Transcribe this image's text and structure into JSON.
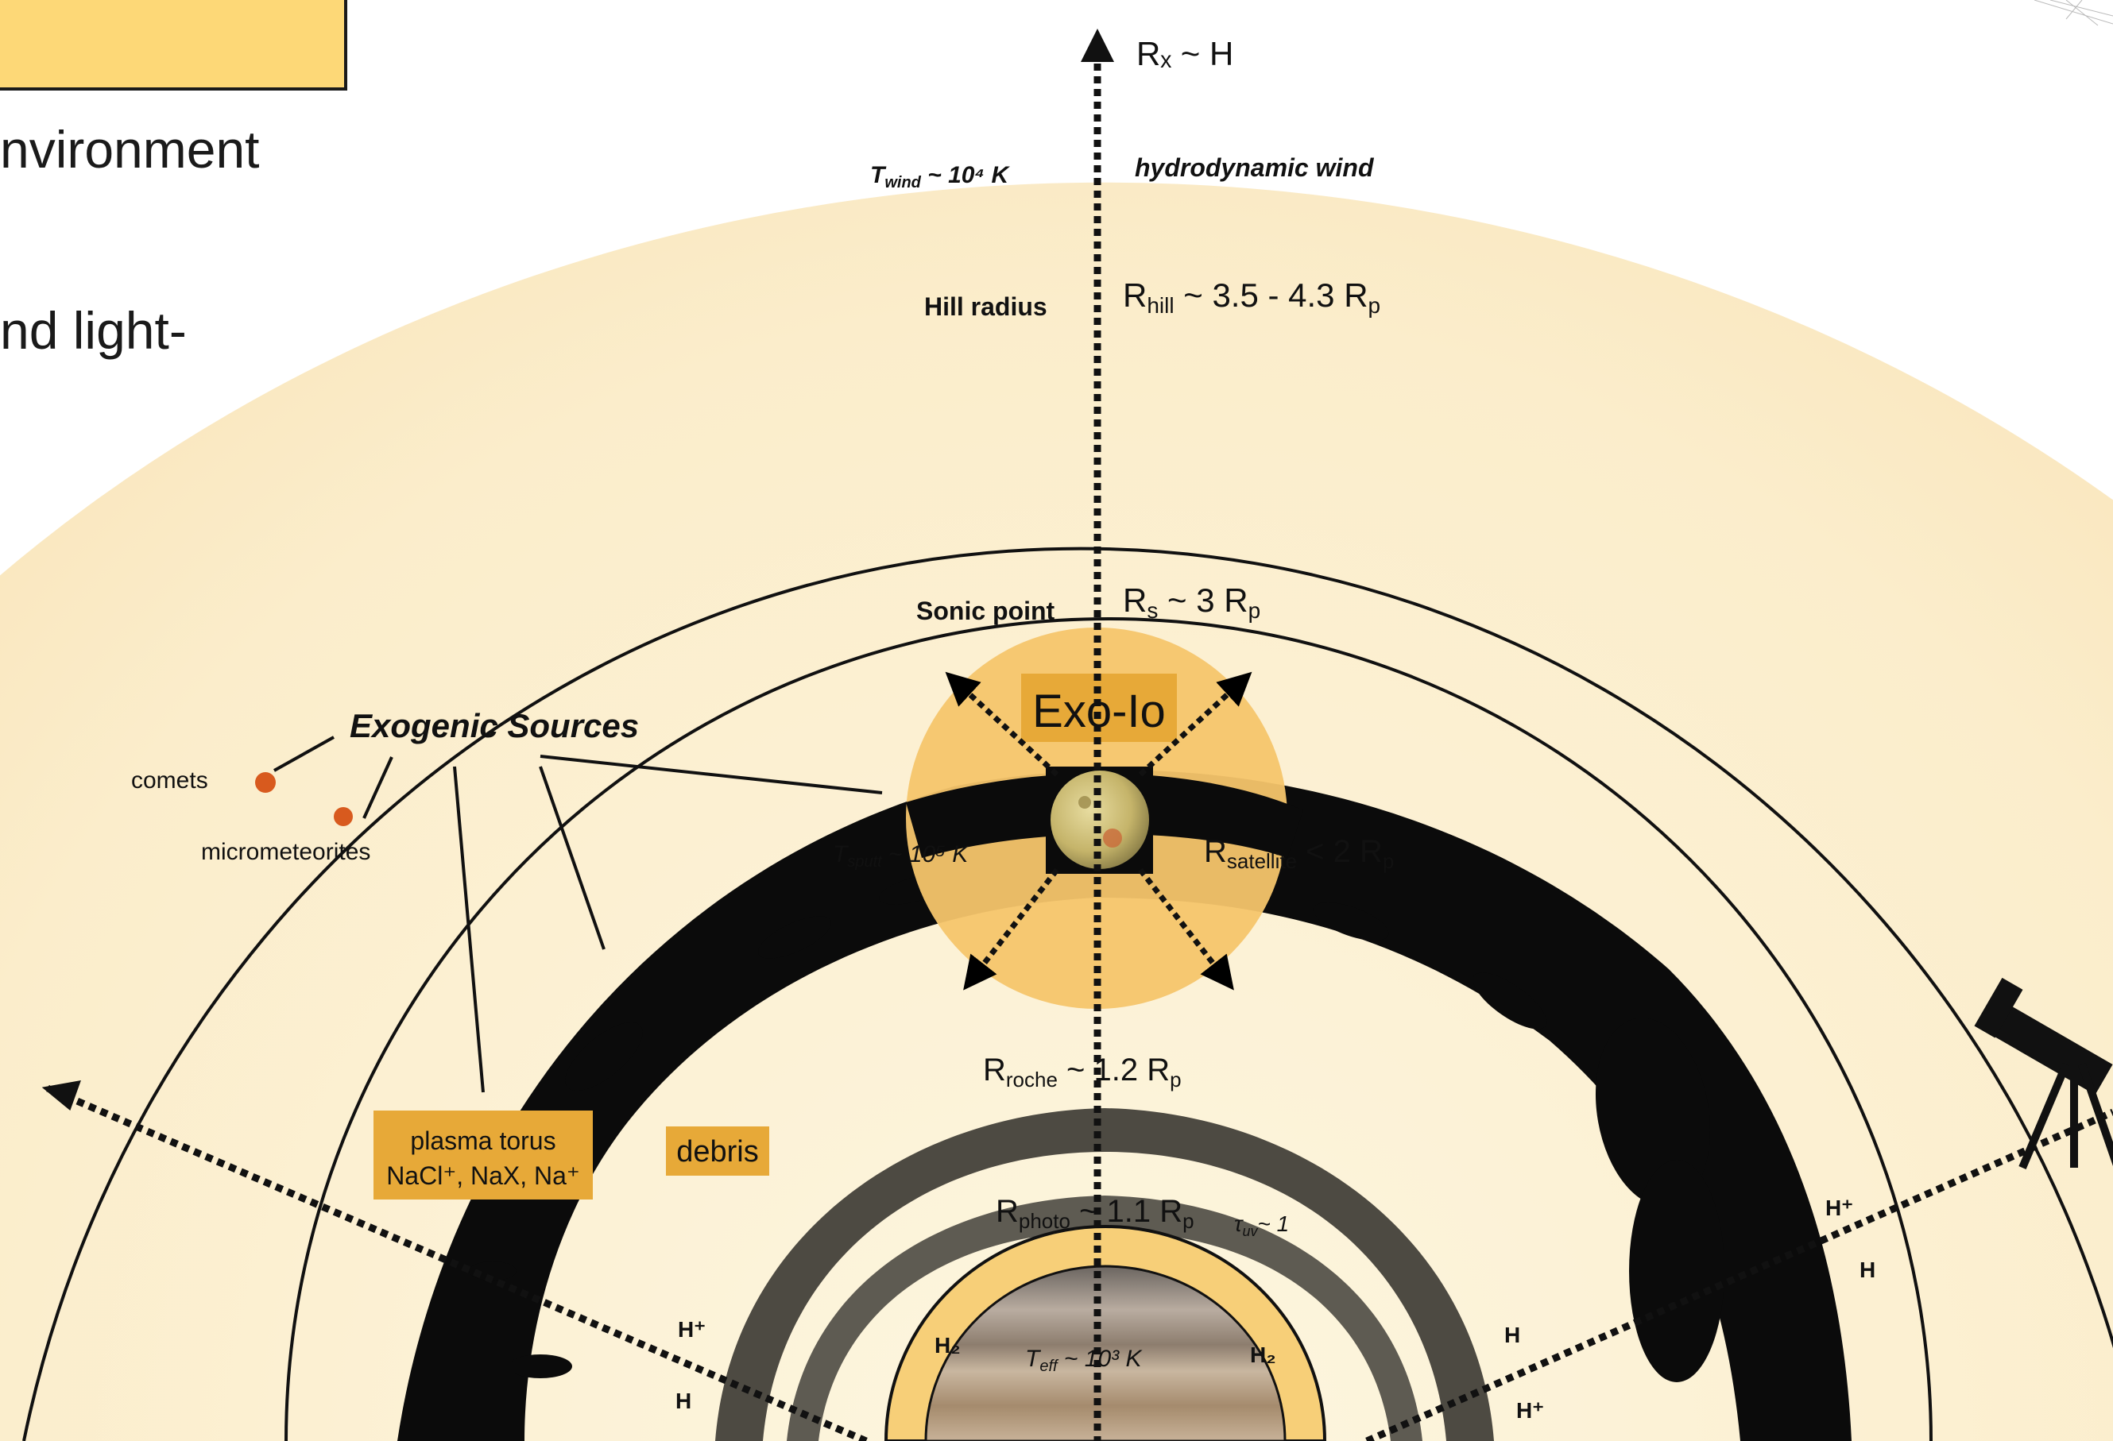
{
  "slide": {
    "line1": "nvironment",
    "line2": "nd light-"
  },
  "diagram": {
    "rx": "Rₓ ~ H",
    "t_wind": "T",
    "t_wind_sub": "wind",
    "t_wind_val": " ~ 10⁴ K",
    "hydro": "hydrodynamic wind",
    "hill_label": "Hill radius",
    "hill_value": "R",
    "hill_sub": "hill",
    "hill_rest": " ~ 3.5 - 4.3 R",
    "hill_p": "p",
    "sonic_label": "Sonic point",
    "sonic_value": "R",
    "sonic_sub": "s",
    "sonic_rest": " ~ 3 R",
    "sonic_p": "p",
    "exo_io": "Exo-Io",
    "exogenic": "Exogenic Sources",
    "comets": "comets",
    "micrometeorites": "micrometeorites",
    "t_sputt": "T",
    "t_sputt_sub": "sputt",
    "t_sputt_val": " ~ 10⁵ K",
    "r_sat": "R",
    "r_sat_sub": "satellite",
    "r_sat_rest": " < 2 R",
    "r_sat_p": "p",
    "plasma_line1": "plasma torus",
    "plasma_line2": "NaCl⁺, NaX, Na⁺",
    "debris": "debris",
    "roche": "R",
    "roche_sub": "roche",
    "roche_rest": " ~ 1.2 R",
    "roche_p": "p",
    "photo": "R",
    "photo_sub": "photo",
    "photo_rest": " ~ 1.1 R",
    "photo_p": "p",
    "tau": "τ",
    "tau_sub": "uv",
    "tau_rest": "~ 1",
    "h_plus": "H⁺",
    "h": "H",
    "h2": "H₂",
    "t_eff": "T",
    "t_eff_sub": "eff",
    "t_eff_val": " ~ 10³ K"
  },
  "colors": {
    "background_glow": "#fcecc8",
    "inner_cream": "#fdf6e0",
    "gold": "#e7a938",
    "exo_disk": "#f6c56b",
    "torus": "#0b0b0b",
    "ring_gray": "#4d4a42",
    "planet_band": "#f7cf78"
  }
}
